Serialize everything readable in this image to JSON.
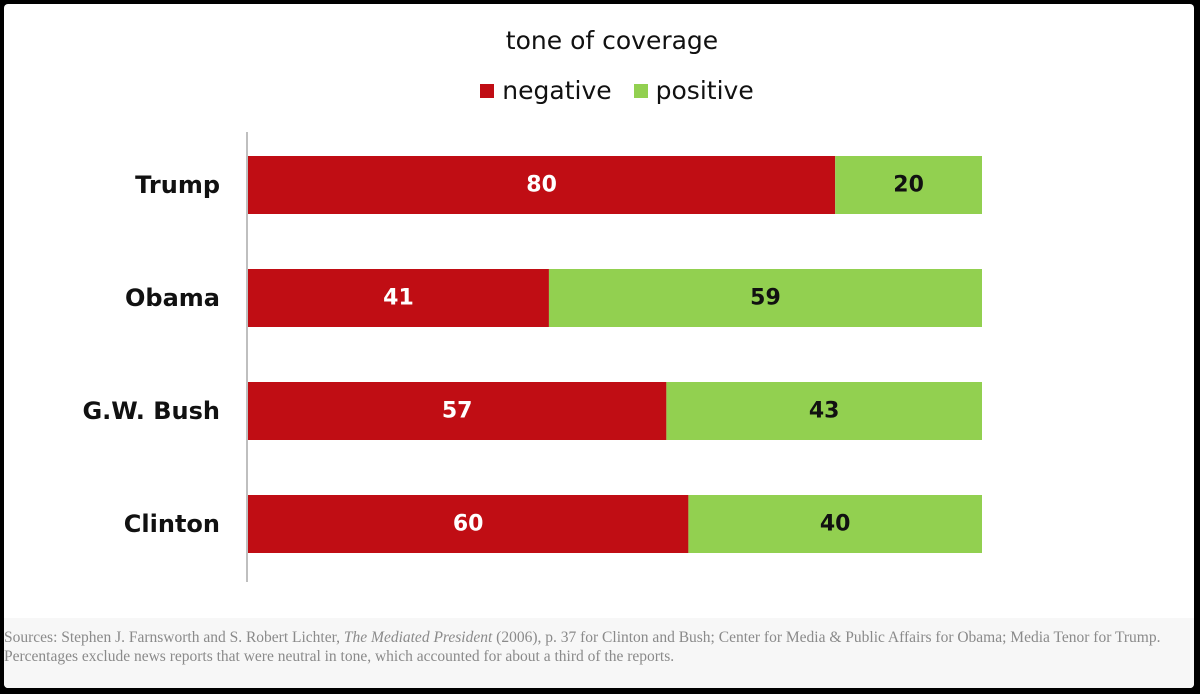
{
  "chart_data": {
    "type": "bar",
    "orientation": "horizontal",
    "stacked": true,
    "title": "tone of coverage",
    "categories": [
      "Trump",
      "Obama",
      "G.W. Bush",
      "Clinton"
    ],
    "series": [
      {
        "name": "negative",
        "values": [
          80,
          41,
          57,
          60
        ],
        "color": "#c00d14"
      },
      {
        "name": "positive",
        "values": [
          20,
          59,
          43,
          40
        ],
        "color": "#92d050"
      }
    ],
    "xlim": [
      0,
      100
    ],
    "grid": false,
    "legend_position": "top"
  },
  "source": {
    "before": "Sources: Stephen J. Farnsworth and S. Robert Lichter, ",
    "italic": "The Mediated President",
    "after": " (2006), p. 37 for Clinton and Bush; Center for Media & Public Affairs for Obama; Media Tenor for Trump. Percentages exclude news reports that were neutral in tone, which accounted for about a third of the reports."
  }
}
